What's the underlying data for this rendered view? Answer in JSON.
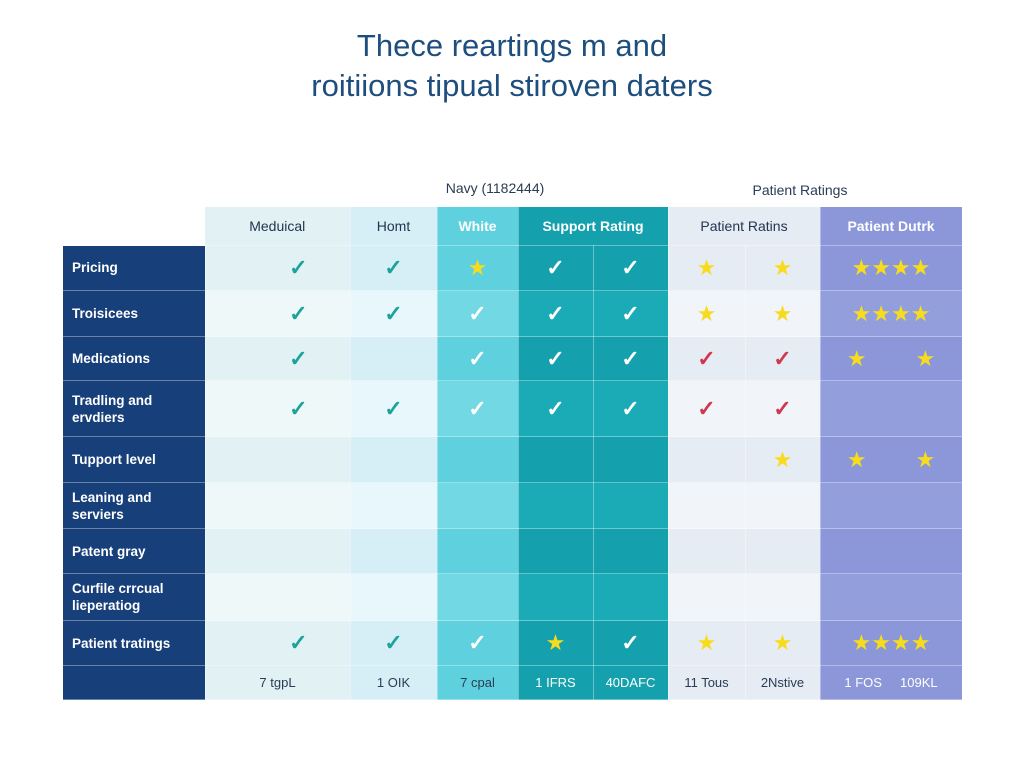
{
  "title": [
    "Thece reartings m and",
    "roitiions tipual stiroven daters"
  ],
  "group_headers": [
    "Navy (1182444)",
    "Patient Ratings"
  ],
  "columns": [
    "Meduical",
    "Homt",
    "White",
    "Support Rating",
    "Patient Ratins",
    "Patient Dutrk"
  ],
  "colors": {
    "navy": "#173f7a",
    "title": "#1d4e7e",
    "teal": "#14a1ad",
    "star": "#f7dc1e",
    "red_check": "#d0384e",
    "purple": "#8b97d9"
  },
  "rows": [
    {
      "label": "Pricing",
      "cells": [
        "check",
        "check",
        "star",
        "check",
        "check",
        "star",
        "star",
        "star4"
      ]
    },
    {
      "label": "Troisicees",
      "cells": [
        "check",
        "check",
        "check",
        "check",
        "check",
        "star",
        "star",
        "star4"
      ]
    },
    {
      "label": "Medications",
      "cells": [
        "check",
        "",
        "check",
        "check",
        "check",
        "redcheck",
        "redcheck",
        "star2"
      ]
    },
    {
      "label": "Tradling and ervdiers",
      "cells": [
        "check",
        "check",
        "check",
        "check",
        "check",
        "redcheck",
        "redcheck",
        ""
      ]
    },
    {
      "label": "Tupport level",
      "cells": [
        "",
        "",
        "",
        "",
        "",
        "",
        "star",
        "star2"
      ]
    },
    {
      "label": "Leaning and serviers",
      "cells": [
        "",
        "",
        "",
        "",
        "",
        "",
        "",
        ""
      ]
    },
    {
      "label": "Patent gray",
      "cells": [
        "",
        "",
        "",
        "",
        "",
        "",
        "",
        ""
      ]
    },
    {
      "label": "Curfile crrcual lieperatiog",
      "cells": [
        "",
        "",
        "",
        "",
        "",
        "",
        "",
        ""
      ]
    },
    {
      "label": "Patient tratings",
      "cells": [
        "check",
        "check",
        "check",
        "star",
        "check",
        "star",
        "star",
        "star4"
      ]
    }
  ],
  "footer": [
    "7 tgpL",
    "1 OIK",
    "7 cpal",
    "1 IFRS",
    "40DAFC",
    "11 Tous",
    "2Nstive",
    "1 FOS",
    "109KL"
  ]
}
